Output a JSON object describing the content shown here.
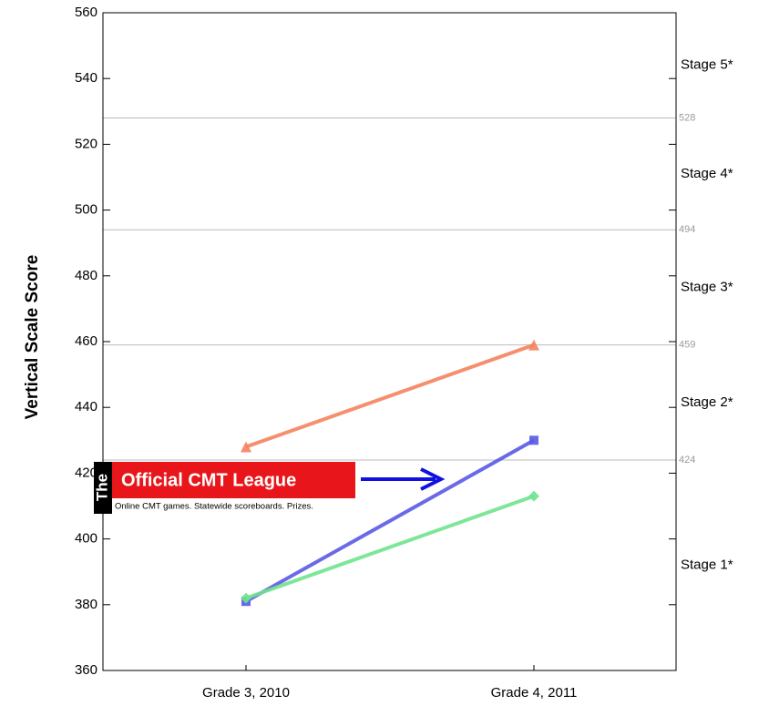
{
  "chart_data": {
    "type": "line",
    "y_axis_label": "Vertical Scale Score",
    "categories": [
      "Grade 3, 2010",
      "Grade 4, 2011"
    ],
    "series": [
      {
        "color": "#f4835e",
        "marker": "triangle",
        "values": [
          428,
          459
        ]
      },
      {
        "color": "#5a5ae6",
        "marker": "square",
        "values": [
          381,
          430
        ]
      },
      {
        "color": "#6fe38d",
        "marker": "diamond",
        "values": [
          382,
          413
        ]
      }
    ],
    "ylim": [
      360,
      560
    ],
    "yticks": [
      360,
      380,
      400,
      420,
      440,
      460,
      480,
      500,
      520,
      540,
      560
    ],
    "reference_lines": [
      424,
      459,
      494,
      528
    ],
    "stages": [
      "Stage 1*",
      "Stage 2*",
      "Stage 3*",
      "Stage 4*",
      "Stage 5*"
    ],
    "banner": {
      "the": "The",
      "title": "Official CMT League",
      "tagline": "Online CMT games. Statewide scoreboards. Prizes."
    }
  }
}
